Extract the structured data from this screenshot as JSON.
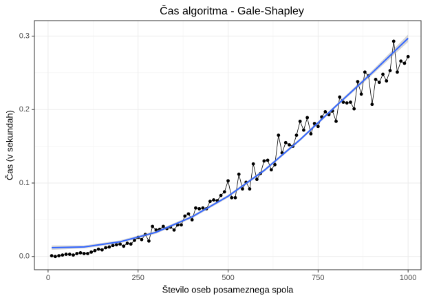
{
  "chart_data": {
    "type": "line",
    "title": "Čas algoritma - Gale-Shapley",
    "x_label": "Število oseb posameznega spola",
    "y_label": "Čas (v sekundah)",
    "x": [
      10,
      20,
      30,
      40,
      50,
      60,
      70,
      80,
      90,
      100,
      110,
      120,
      130,
      140,
      150,
      160,
      170,
      180,
      190,
      200,
      210,
      220,
      230,
      240,
      250,
      260,
      270,
      280,
      290,
      300,
      310,
      320,
      330,
      340,
      350,
      360,
      370,
      380,
      390,
      400,
      410,
      420,
      430,
      440,
      450,
      460,
      470,
      480,
      490,
      500,
      510,
      520,
      530,
      540,
      550,
      560,
      570,
      580,
      590,
      600,
      610,
      620,
      630,
      640,
      650,
      660,
      670,
      680,
      690,
      700,
      710,
      720,
      730,
      740,
      750,
      760,
      770,
      780,
      790,
      800,
      810,
      820,
      830,
      840,
      850,
      860,
      870,
      880,
      890,
      900,
      910,
      920,
      930,
      940,
      950,
      960,
      970,
      980,
      990,
      1000
    ],
    "values": [
      0.001,
      0.0,
      0.001,
      0.002,
      0.003,
      0.003,
      0.002,
      0.004,
      0.005,
      0.004,
      0.004,
      0.006,
      0.008,
      0.01,
      0.009,
      0.012,
      0.013,
      0.015,
      0.016,
      0.017,
      0.014,
      0.018,
      0.017,
      0.022,
      0.026,
      0.023,
      0.03,
      0.021,
      0.041,
      0.036,
      0.037,
      0.041,
      0.038,
      0.04,
      0.036,
      0.043,
      0.043,
      0.055,
      0.058,
      0.05,
      0.066,
      0.065,
      0.066,
      0.065,
      0.075,
      0.077,
      0.076,
      0.083,
      0.088,
      0.103,
      0.08,
      0.08,
      0.112,
      0.092,
      0.101,
      0.092,
      0.126,
      0.105,
      0.113,
      0.13,
      0.131,
      0.118,
      0.125,
      0.165,
      0.141,
      0.155,
      0.152,
      0.15,
      0.165,
      0.184,
      0.172,
      0.189,
      0.167,
      0.181,
      0.177,
      0.19,
      0.197,
      0.193,
      0.198,
      0.184,
      0.217,
      0.21,
      0.209,
      0.21,
      0.201,
      0.238,
      0.221,
      0.251,
      0.246,
      0.207,
      0.241,
      0.237,
      0.248,
      0.239,
      0.253,
      0.293,
      0.251,
      0.266,
      0.263,
      0.272
    ],
    "color": "#000000",
    "smooth": {
      "x": [
        10,
        100,
        200,
        300,
        400,
        500,
        600,
        700,
        800,
        900,
        1000
      ],
      "values": [
        0.012,
        0.013,
        0.02,
        0.033,
        0.054,
        0.082,
        0.117,
        0.159,
        0.205,
        0.25,
        0.297
      ],
      "lower": [
        0.009,
        0.011,
        0.018,
        0.031,
        0.052,
        0.08,
        0.115,
        0.157,
        0.203,
        0.247,
        0.292
      ],
      "upper": [
        0.015,
        0.015,
        0.022,
        0.035,
        0.056,
        0.084,
        0.119,
        0.161,
        0.207,
        0.253,
        0.302
      ],
      "color": "#3366FF",
      "band_color": "#999999"
    },
    "xlim": [
      -38,
      1036
    ],
    "ylim": [
      -0.018,
      0.321
    ],
    "xticks": [
      0,
      250,
      500,
      750,
      1000
    ],
    "yticks": [
      {
        "value": 0,
        "label": "0.0"
      },
      0.1,
      0.2,
      0.3
    ],
    "xminor": [
      125,
      375,
      625,
      875
    ],
    "yminor": [
      0.05,
      0.15,
      0.25
    ],
    "grid": true
  }
}
